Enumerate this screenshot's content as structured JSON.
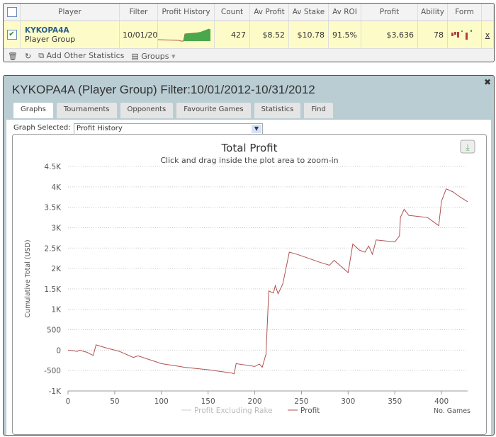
{
  "table": {
    "headers": [
      "Player",
      "Filter",
      "Profit History",
      "Count",
      "Av Profit",
      "Av Stake",
      "Av ROI",
      "Profit",
      "Ability",
      "Form"
    ],
    "row": {
      "name": "KYKOPA4A",
      "type": "Player Group",
      "filter": "10/01/20",
      "count": "427",
      "av_profit": "$8.52",
      "av_stake": "$10.78",
      "av_roi": "91.5%",
      "profit": "$3,636",
      "ability": "78",
      "remove": "x"
    },
    "footer": {
      "add": "Add Other Statistics",
      "groups": "Groups"
    }
  },
  "panel": {
    "title": "KYKOPA4A (Player Group) Filter:10/01/2012-10/31/2012",
    "tabs": [
      "Graphs",
      "Tournaments",
      "Opponents",
      "Favourite Games",
      "Statistics",
      "Find"
    ],
    "graph_label": "Graph Selected:",
    "graph_value": "Profit History"
  },
  "chart_data": {
    "type": "line",
    "title": "Total Profit",
    "subtitle": "Click and drag inside the plot area to zoom-in",
    "xlabel": "No. Games",
    "ylabel": "Cumulative Total (USD)",
    "xlim": [
      0,
      428
    ],
    "ylim": [
      -1000,
      4500
    ],
    "xticks": [
      "0",
      "50",
      "100",
      "150",
      "200",
      "250",
      "300",
      "350",
      "400"
    ],
    "yticks": [
      "-1K",
      "-500",
      "0",
      "500",
      "1K",
      "1.5K",
      "2K",
      "2.5K",
      "3K",
      "3.5K",
      "4K",
      "4.5K"
    ],
    "legend": [
      "Profit Excluding Rake",
      "Profit"
    ],
    "series": [
      {
        "name": "Profit",
        "color": "#b05050",
        "points": [
          [
            0,
            0
          ],
          [
            10,
            -30
          ],
          [
            12,
            0
          ],
          [
            20,
            -50
          ],
          [
            27,
            -130
          ],
          [
            30,
            130
          ],
          [
            40,
            60
          ],
          [
            55,
            -30
          ],
          [
            70,
            -180
          ],
          [
            75,
            -140
          ],
          [
            100,
            -330
          ],
          [
            125,
            -420
          ],
          [
            150,
            -480
          ],
          [
            175,
            -560
          ],
          [
            178,
            -580
          ],
          [
            180,
            -330
          ],
          [
            200,
            -400
          ],
          [
            205,
            -340
          ],
          [
            208,
            -420
          ],
          [
            212,
            -100
          ],
          [
            215,
            1450
          ],
          [
            220,
            1400
          ],
          [
            222,
            1580
          ],
          [
            225,
            1380
          ],
          [
            230,
            1620
          ],
          [
            237,
            2400
          ],
          [
            245,
            2350
          ],
          [
            270,
            2150
          ],
          [
            280,
            2080
          ],
          [
            285,
            2200
          ],
          [
            300,
            1900
          ],
          [
            305,
            2600
          ],
          [
            312,
            2450
          ],
          [
            318,
            2400
          ],
          [
            322,
            2550
          ],
          [
            326,
            2350
          ],
          [
            330,
            2700
          ],
          [
            350,
            2650
          ],
          [
            355,
            2800
          ],
          [
            356,
            3250
          ],
          [
            360,
            3450
          ],
          [
            365,
            3300
          ],
          [
            385,
            3250
          ],
          [
            397,
            3050
          ],
          [
            400,
            3650
          ],
          [
            405,
            3950
          ],
          [
            412,
            3880
          ],
          [
            420,
            3750
          ],
          [
            428,
            3636
          ]
        ]
      }
    ]
  }
}
